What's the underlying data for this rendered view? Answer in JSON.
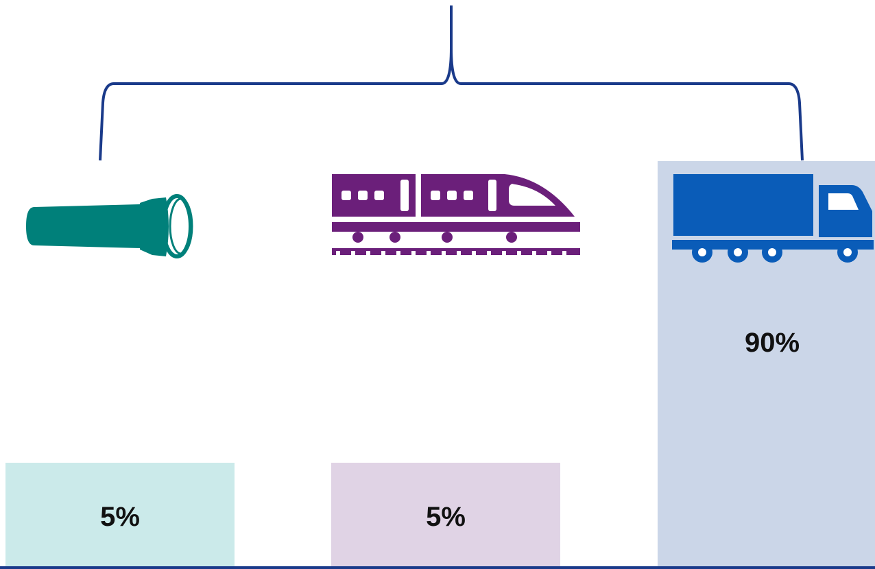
{
  "chart_data": {
    "type": "bar",
    "categories": [
      "pipeline",
      "rail",
      "truck"
    ],
    "values": [
      5,
      5,
      90
    ],
    "value_labels": [
      "5%",
      "5%",
      "90%"
    ],
    "unit": "%",
    "ylim": [
      0,
      100
    ],
    "grid": false,
    "legend": "none",
    "title": "",
    "xlabel": "",
    "ylabel": "",
    "icons": [
      "pipe-icon",
      "train-icon",
      "truck-icon"
    ],
    "bar_colors": [
      "#cbeaea",
      "#e0d3e5",
      "#cbd6e8"
    ],
    "icon_colors": [
      "#00807a",
      "#6b1f7a",
      "#0a5cb8"
    ],
    "bracket_color": "#1a3a8a",
    "baseline_color": "#1a3a8a"
  }
}
